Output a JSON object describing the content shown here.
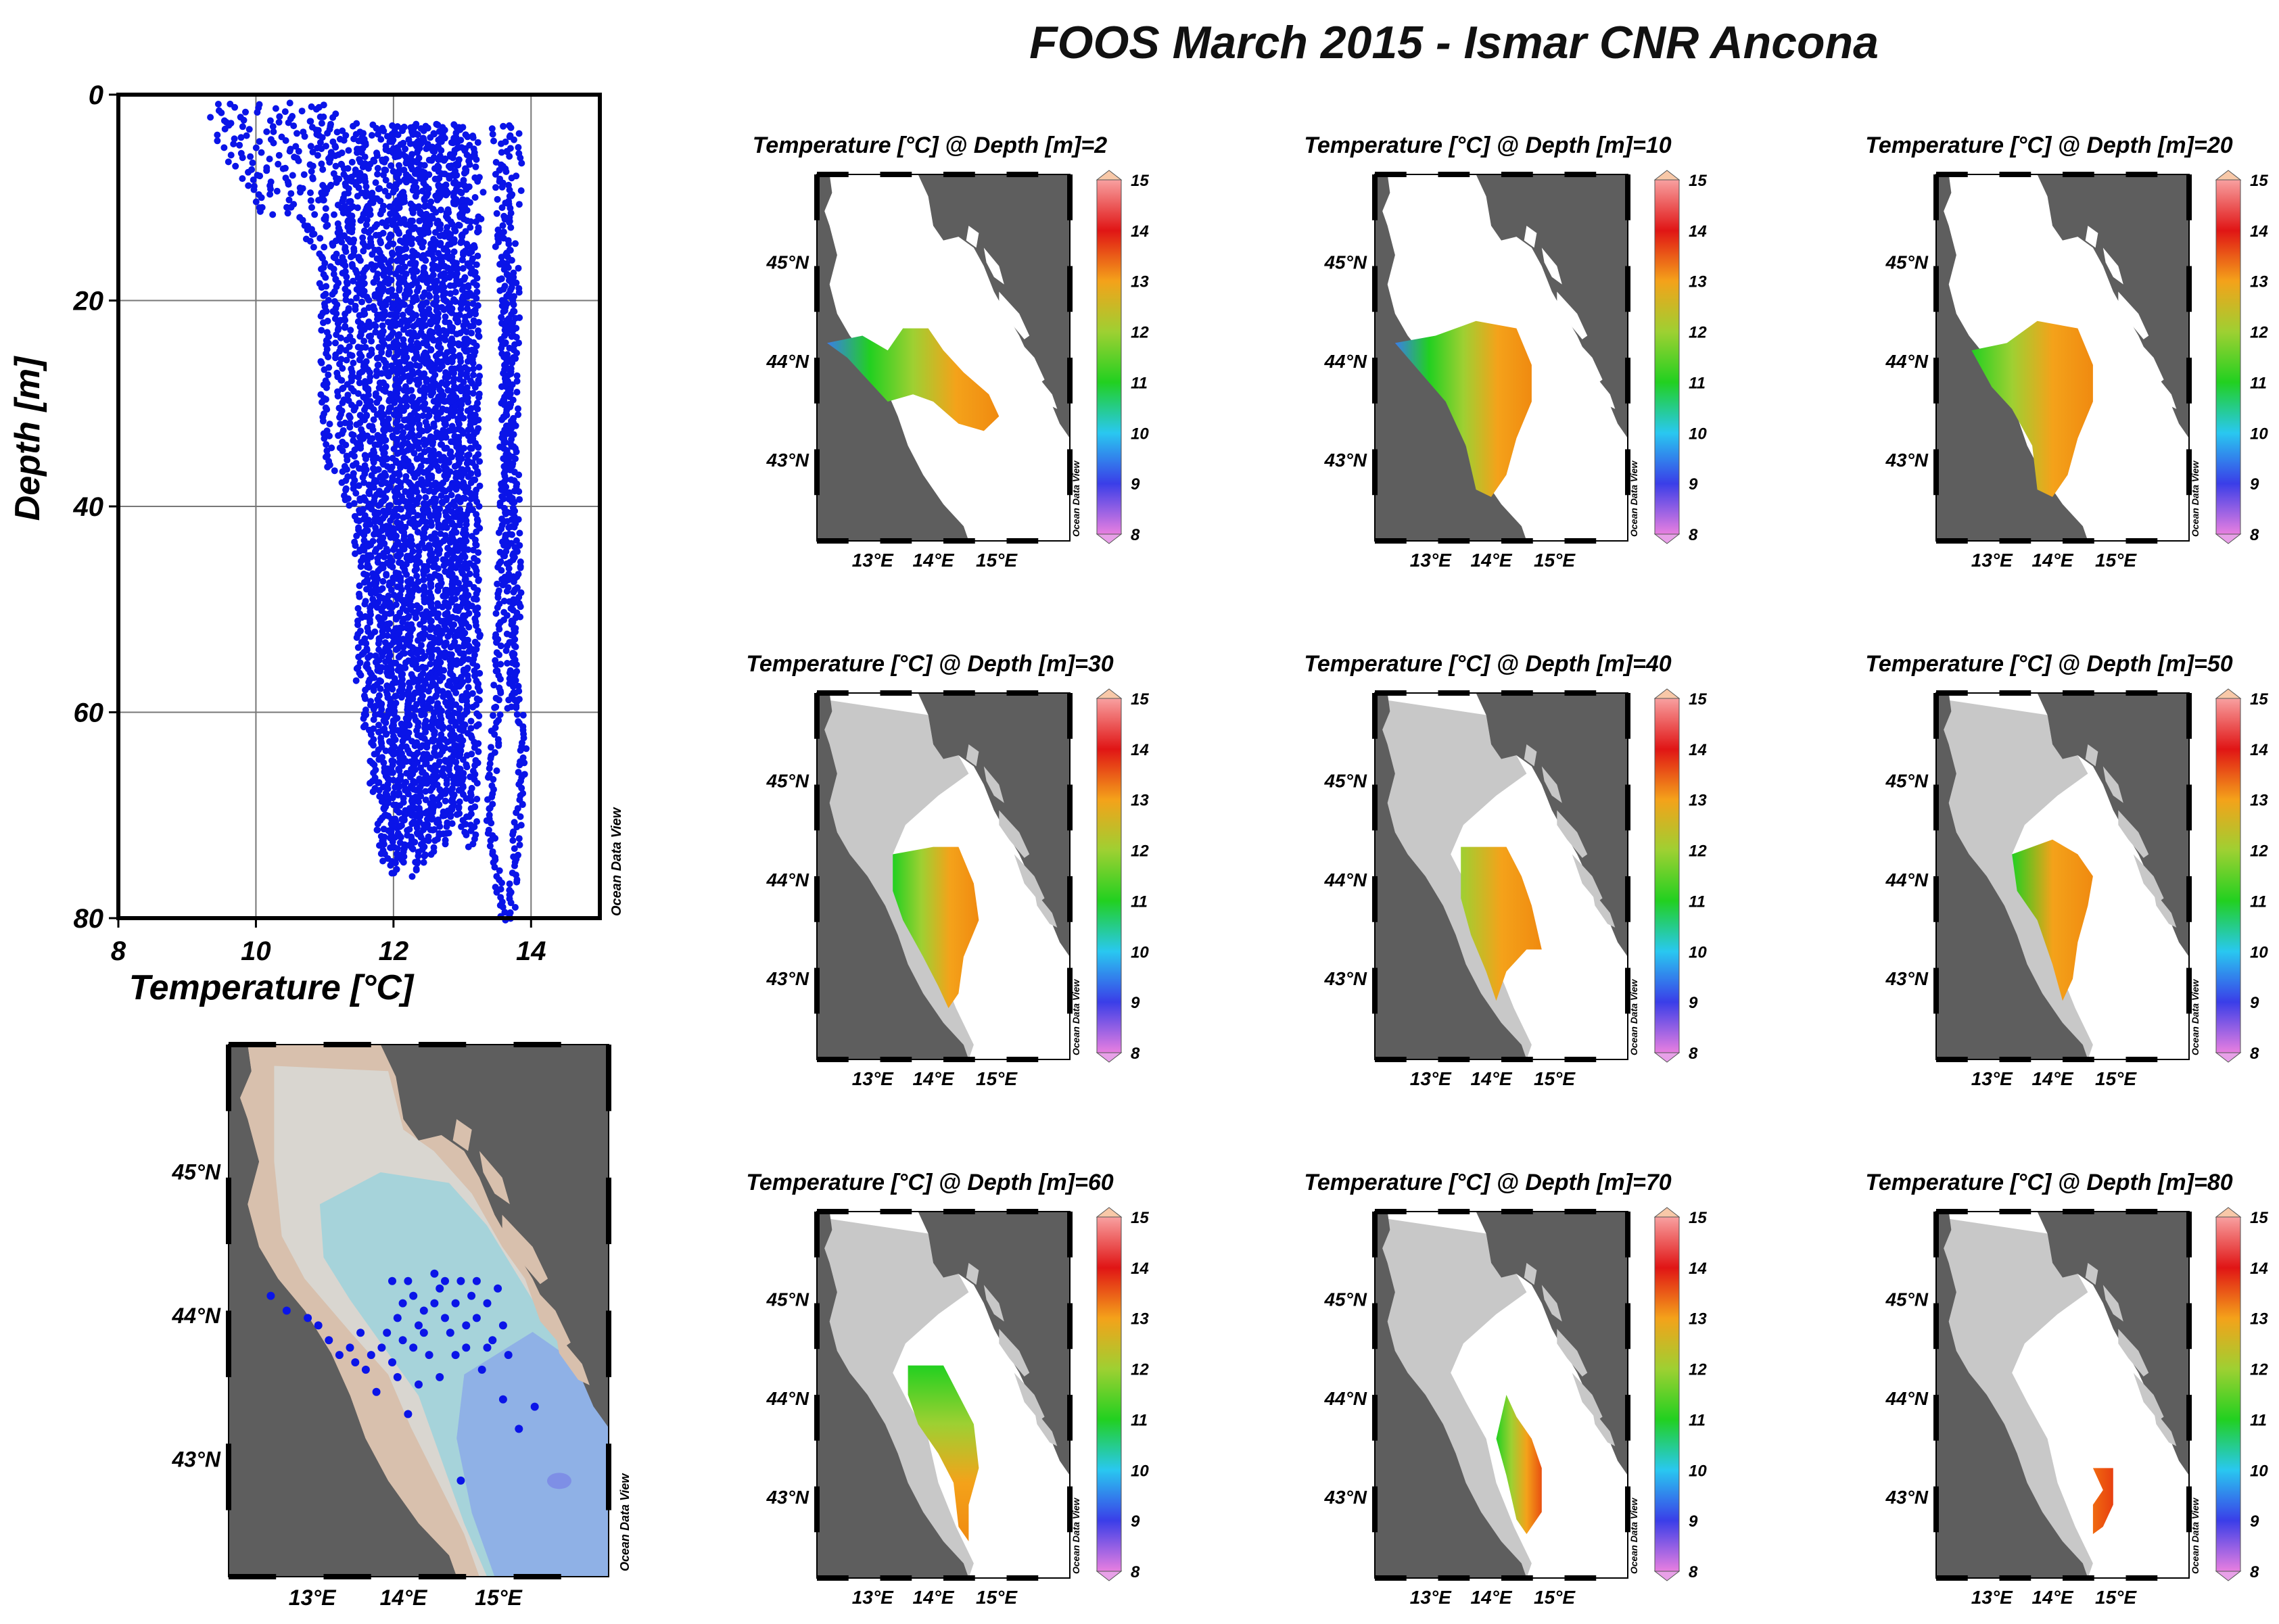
{
  "title": "FOOS March 2015 - Ismar CNR Ancona",
  "watermark": "Ocean Data View",
  "chart_data": [
    {
      "type": "scatter",
      "xlabel": "Temperature [°C]",
      "ylabel": "Depth [m]",
      "xlim": [
        8,
        15
      ],
      "ylim": [
        80,
        0
      ],
      "xticks": [
        8,
        10,
        12,
        14
      ],
      "yticks": [
        0,
        20,
        40,
        60,
        80
      ],
      "grid": true,
      "marker_color": "#0a14e8",
      "profiles": [
        {
          "maxDepth": 12,
          "T": [
            [
              1,
              9.4
            ],
            [
              5,
              9.6
            ],
            [
              9,
              9.9
            ],
            [
              12,
              10.2
            ]
          ]
        },
        {
          "maxDepth": 14,
          "T": [
            [
              1,
              9.7
            ],
            [
              6,
              10.0
            ],
            [
              10,
              10.4
            ],
            [
              14,
              10.8
            ]
          ]
        },
        {
          "maxDepth": 10,
          "T": [
            [
              1,
              10.1
            ],
            [
              5,
              10.4
            ],
            [
              10,
              10.6
            ]
          ]
        },
        {
          "maxDepth": 37,
          "T": [
            [
              1,
              10.4
            ],
            [
              10,
              10.9
            ],
            [
              20,
              11.0
            ],
            [
              30,
              11.0
            ],
            [
              37,
              11.1
            ]
          ]
        },
        {
          "maxDepth": 40,
          "T": [
            [
              1,
              10.8
            ],
            [
              10,
              11.1
            ],
            [
              25,
              11.2
            ],
            [
              40,
              11.3
            ]
          ]
        },
        {
          "maxDepth": 45,
          "T": [
            [
              1,
              11.0
            ],
            [
              15,
              11.3
            ],
            [
              30,
              11.4
            ],
            [
              45,
              11.5
            ]
          ]
        },
        {
          "maxDepth": 57,
          "T": [
            [
              3,
              11.2
            ],
            [
              20,
              11.5
            ],
            [
              40,
              11.6
            ],
            [
              57,
              11.5
            ]
          ]
        },
        {
          "maxDepth": 62,
          "T": [
            [
              3,
              11.4
            ],
            [
              20,
              11.6
            ],
            [
              40,
              11.7
            ],
            [
              62,
              11.6
            ]
          ]
        },
        {
          "maxDepth": 68,
          "T": [
            [
              3,
              11.6
            ],
            [
              25,
              11.8
            ],
            [
              50,
              11.8
            ],
            [
              68,
              11.7
            ]
          ]
        },
        {
          "maxDepth": 74,
          "T": [
            [
              3,
              11.7
            ],
            [
              25,
              11.9
            ],
            [
              50,
              11.9
            ],
            [
              74,
              11.8
            ]
          ]
        },
        {
          "maxDepth": 75,
          "T": [
            [
              3,
              11.9
            ],
            [
              25,
              12.0
            ],
            [
              50,
              12.0
            ],
            [
              75,
              11.9
            ]
          ]
        },
        {
          "maxDepth": 76,
          "T": [
            [
              3,
              12.0
            ],
            [
              25,
              12.1
            ],
            [
              50,
              12.1
            ],
            [
              76,
              12.0
            ]
          ]
        },
        {
          "maxDepth": 75,
          "T": [
            [
              3,
              12.1
            ],
            [
              25,
              12.2
            ],
            [
              50,
              12.2
            ],
            [
              75,
              12.1
            ]
          ]
        },
        {
          "maxDepth": 74,
          "T": [
            [
              3,
              12.2
            ],
            [
              25,
              12.3
            ],
            [
              50,
              12.3
            ],
            [
              74,
              12.2
            ]
          ]
        },
        {
          "maxDepth": 76,
          "T": [
            [
              3,
              12.3
            ],
            [
              25,
              12.4
            ],
            [
              50,
              12.4
            ],
            [
              76,
              12.3
            ]
          ]
        },
        {
          "maxDepth": 75,
          "T": [
            [
              3,
              12.4
            ],
            [
              25,
              12.5
            ],
            [
              50,
              12.5
            ],
            [
              75,
              12.4
            ]
          ]
        },
        {
          "maxDepth": 73,
          "T": [
            [
              3,
              12.5
            ],
            [
              25,
              12.6
            ],
            [
              50,
              12.6
            ],
            [
              73,
              12.5
            ]
          ]
        },
        {
          "maxDepth": 74,
          "T": [
            [
              3,
              12.6
            ],
            [
              25,
              12.7
            ],
            [
              50,
              12.7
            ],
            [
              74,
              12.6
            ]
          ]
        },
        {
          "maxDepth": 72,
          "T": [
            [
              3,
              12.7
            ],
            [
              25,
              12.8
            ],
            [
              50,
              12.8
            ],
            [
              72,
              12.7
            ]
          ]
        },
        {
          "maxDepth": 73,
          "T": [
            [
              3,
              12.8
            ],
            [
              25,
              12.9
            ],
            [
              50,
              12.9
            ],
            [
              73,
              12.8
            ]
          ]
        },
        {
          "maxDepth": 70,
          "T": [
            [
              3,
              12.9
            ],
            [
              25,
              13.0
            ],
            [
              50,
              13.0
            ],
            [
              70,
              12.9
            ]
          ]
        },
        {
          "maxDepth": 72,
          "T": [
            [
              3,
              13.0
            ],
            [
              25,
              13.1
            ],
            [
              50,
              13.05
            ],
            [
              72,
              13.0
            ]
          ]
        },
        {
          "maxDepth": 73,
          "T": [
            [
              4,
              13.15
            ],
            [
              30,
              13.2
            ],
            [
              55,
              13.2
            ],
            [
              73,
              13.15
            ]
          ]
        },
        {
          "maxDepth": 80,
          "T": [
            [
              3,
              13.6
            ],
            [
              20,
              13.6
            ],
            [
              40,
              13.6
            ],
            [
              60,
              13.5
            ],
            [
              70,
              13.4
            ],
            [
              80,
              13.6
            ]
          ]
        },
        {
          "maxDepth": 80,
          "T": [
            [
              3,
              13.7
            ],
            [
              30,
              13.65
            ],
            [
              55,
              13.7
            ],
            [
              62,
              13.9
            ],
            [
              80,
              13.7
            ]
          ]
        },
        {
          "maxDepth": 60,
          "T": [
            [
              17,
              13.8
            ],
            [
              30,
              13.75
            ],
            [
              50,
              13.8
            ],
            [
              60,
              13.7
            ]
          ]
        }
      ]
    },
    {
      "type": "map",
      "name": "station-map",
      "lon_ticks": [
        "13°E",
        "14°E",
        "15°E"
      ],
      "lat_ticks": [
        "45°N",
        "44°N",
        "43°N"
      ],
      "lon_range": [
        12.0,
        15.6
      ],
      "lat_range": [
        42.2,
        45.8
      ],
      "stations_lonlat": [
        [
          12.4,
          44.1
        ],
        [
          12.55,
          44.0
        ],
        [
          12.75,
          43.95
        ],
        [
          12.85,
          43.9
        ],
        [
          12.95,
          43.8
        ],
        [
          13.05,
          43.7
        ],
        [
          13.15,
          43.75
        ],
        [
          13.2,
          43.65
        ],
        [
          13.3,
          43.6
        ],
        [
          13.35,
          43.7
        ],
        [
          13.45,
          43.75
        ],
        [
          13.5,
          43.85
        ],
        [
          13.55,
          43.65
        ],
        [
          13.6,
          43.95
        ],
        [
          13.65,
          43.8
        ],
        [
          13.7,
          44.2
        ],
        [
          13.75,
          44.1
        ],
        [
          13.8,
          43.9
        ],
        [
          13.85,
          44.0
        ],
        [
          13.9,
          43.7
        ],
        [
          13.95,
          44.25
        ],
        [
          14.0,
          44.15
        ],
        [
          14.05,
          43.95
        ],
        [
          14.1,
          43.85
        ],
        [
          14.15,
          44.05
        ],
        [
          14.2,
          44.2
        ],
        [
          14.25,
          43.75
        ],
        [
          14.3,
          44.1
        ],
        [
          14.35,
          43.95
        ],
        [
          14.4,
          43.6
        ],
        [
          14.45,
          44.05
        ],
        [
          14.5,
          43.8
        ],
        [
          14.55,
          44.15
        ],
        [
          14.6,
          43.9
        ],
        [
          14.65,
          43.7
        ],
        [
          13.55,
          44.2
        ],
        [
          13.65,
          44.05
        ],
        [
          13.75,
          43.75
        ],
        [
          13.85,
          43.85
        ],
        [
          13.95,
          44.05
        ],
        [
          14.05,
          44.2
        ],
        [
          14.15,
          43.7
        ],
        [
          14.25,
          43.9
        ],
        [
          14.35,
          44.2
        ],
        [
          14.45,
          43.75
        ],
        [
          13.6,
          43.55
        ],
        [
          13.8,
          43.5
        ],
        [
          14.0,
          43.55
        ],
        [
          13.7,
          43.3
        ],
        [
          14.6,
          43.4
        ],
        [
          14.9,
          43.35
        ],
        [
          14.75,
          43.2
        ],
        [
          14.2,
          42.85
        ],
        [
          13.4,
          43.45
        ],
        [
          13.25,
          43.85
        ]
      ]
    },
    {
      "type": "heatmap",
      "panels": [
        {
          "label": "Temperature [°C] @ Depth [m]=2",
          "depth": 2,
          "background": "white",
          "field": "d2"
        },
        {
          "label": "Temperature [°C] @ Depth [m]=10",
          "depth": 10,
          "background": "white",
          "field": "d10"
        },
        {
          "label": "Temperature [°C] @ Depth [m]=20",
          "depth": 20,
          "background": "white",
          "field": "d20"
        },
        {
          "label": "Temperature [°C] @ Depth [m]=30",
          "depth": 30,
          "background": "shelf",
          "field": "d30"
        },
        {
          "label": "Temperature [°C] @ Depth [m]=40",
          "depth": 40,
          "background": "shelf",
          "field": "d40"
        },
        {
          "label": "Temperature [°C] @ Depth [m]=50",
          "depth": 50,
          "background": "shelf",
          "field": "d50"
        },
        {
          "label": "Temperature [°C] @ Depth [m]=60",
          "depth": 60,
          "background": "shelf",
          "field": "d60"
        },
        {
          "label": "Temperature [°C] @ Depth [m]=70",
          "depth": 70,
          "background": "shelf",
          "field": "d70"
        },
        {
          "label": "Temperature [°C] @ Depth [m]=80",
          "depth": 80,
          "background": "shelf",
          "field": "d80"
        }
      ],
      "lon_ticks": [
        "13°E",
        "14°E",
        "15°E"
      ],
      "lat_ticks": [
        "45°N",
        "44°N",
        "43°N"
      ],
      "colorbar": {
        "min": 8,
        "max": 15,
        "ticks": [
          8,
          9,
          10,
          11,
          12,
          13,
          14,
          15
        ],
        "colors": [
          "#e87fe0",
          "#3a3ee8",
          "#29c8f0",
          "#22d020",
          "#9ed032",
          "#f4a21a",
          "#e01515",
          "#f8a0a0"
        ]
      }
    }
  ]
}
